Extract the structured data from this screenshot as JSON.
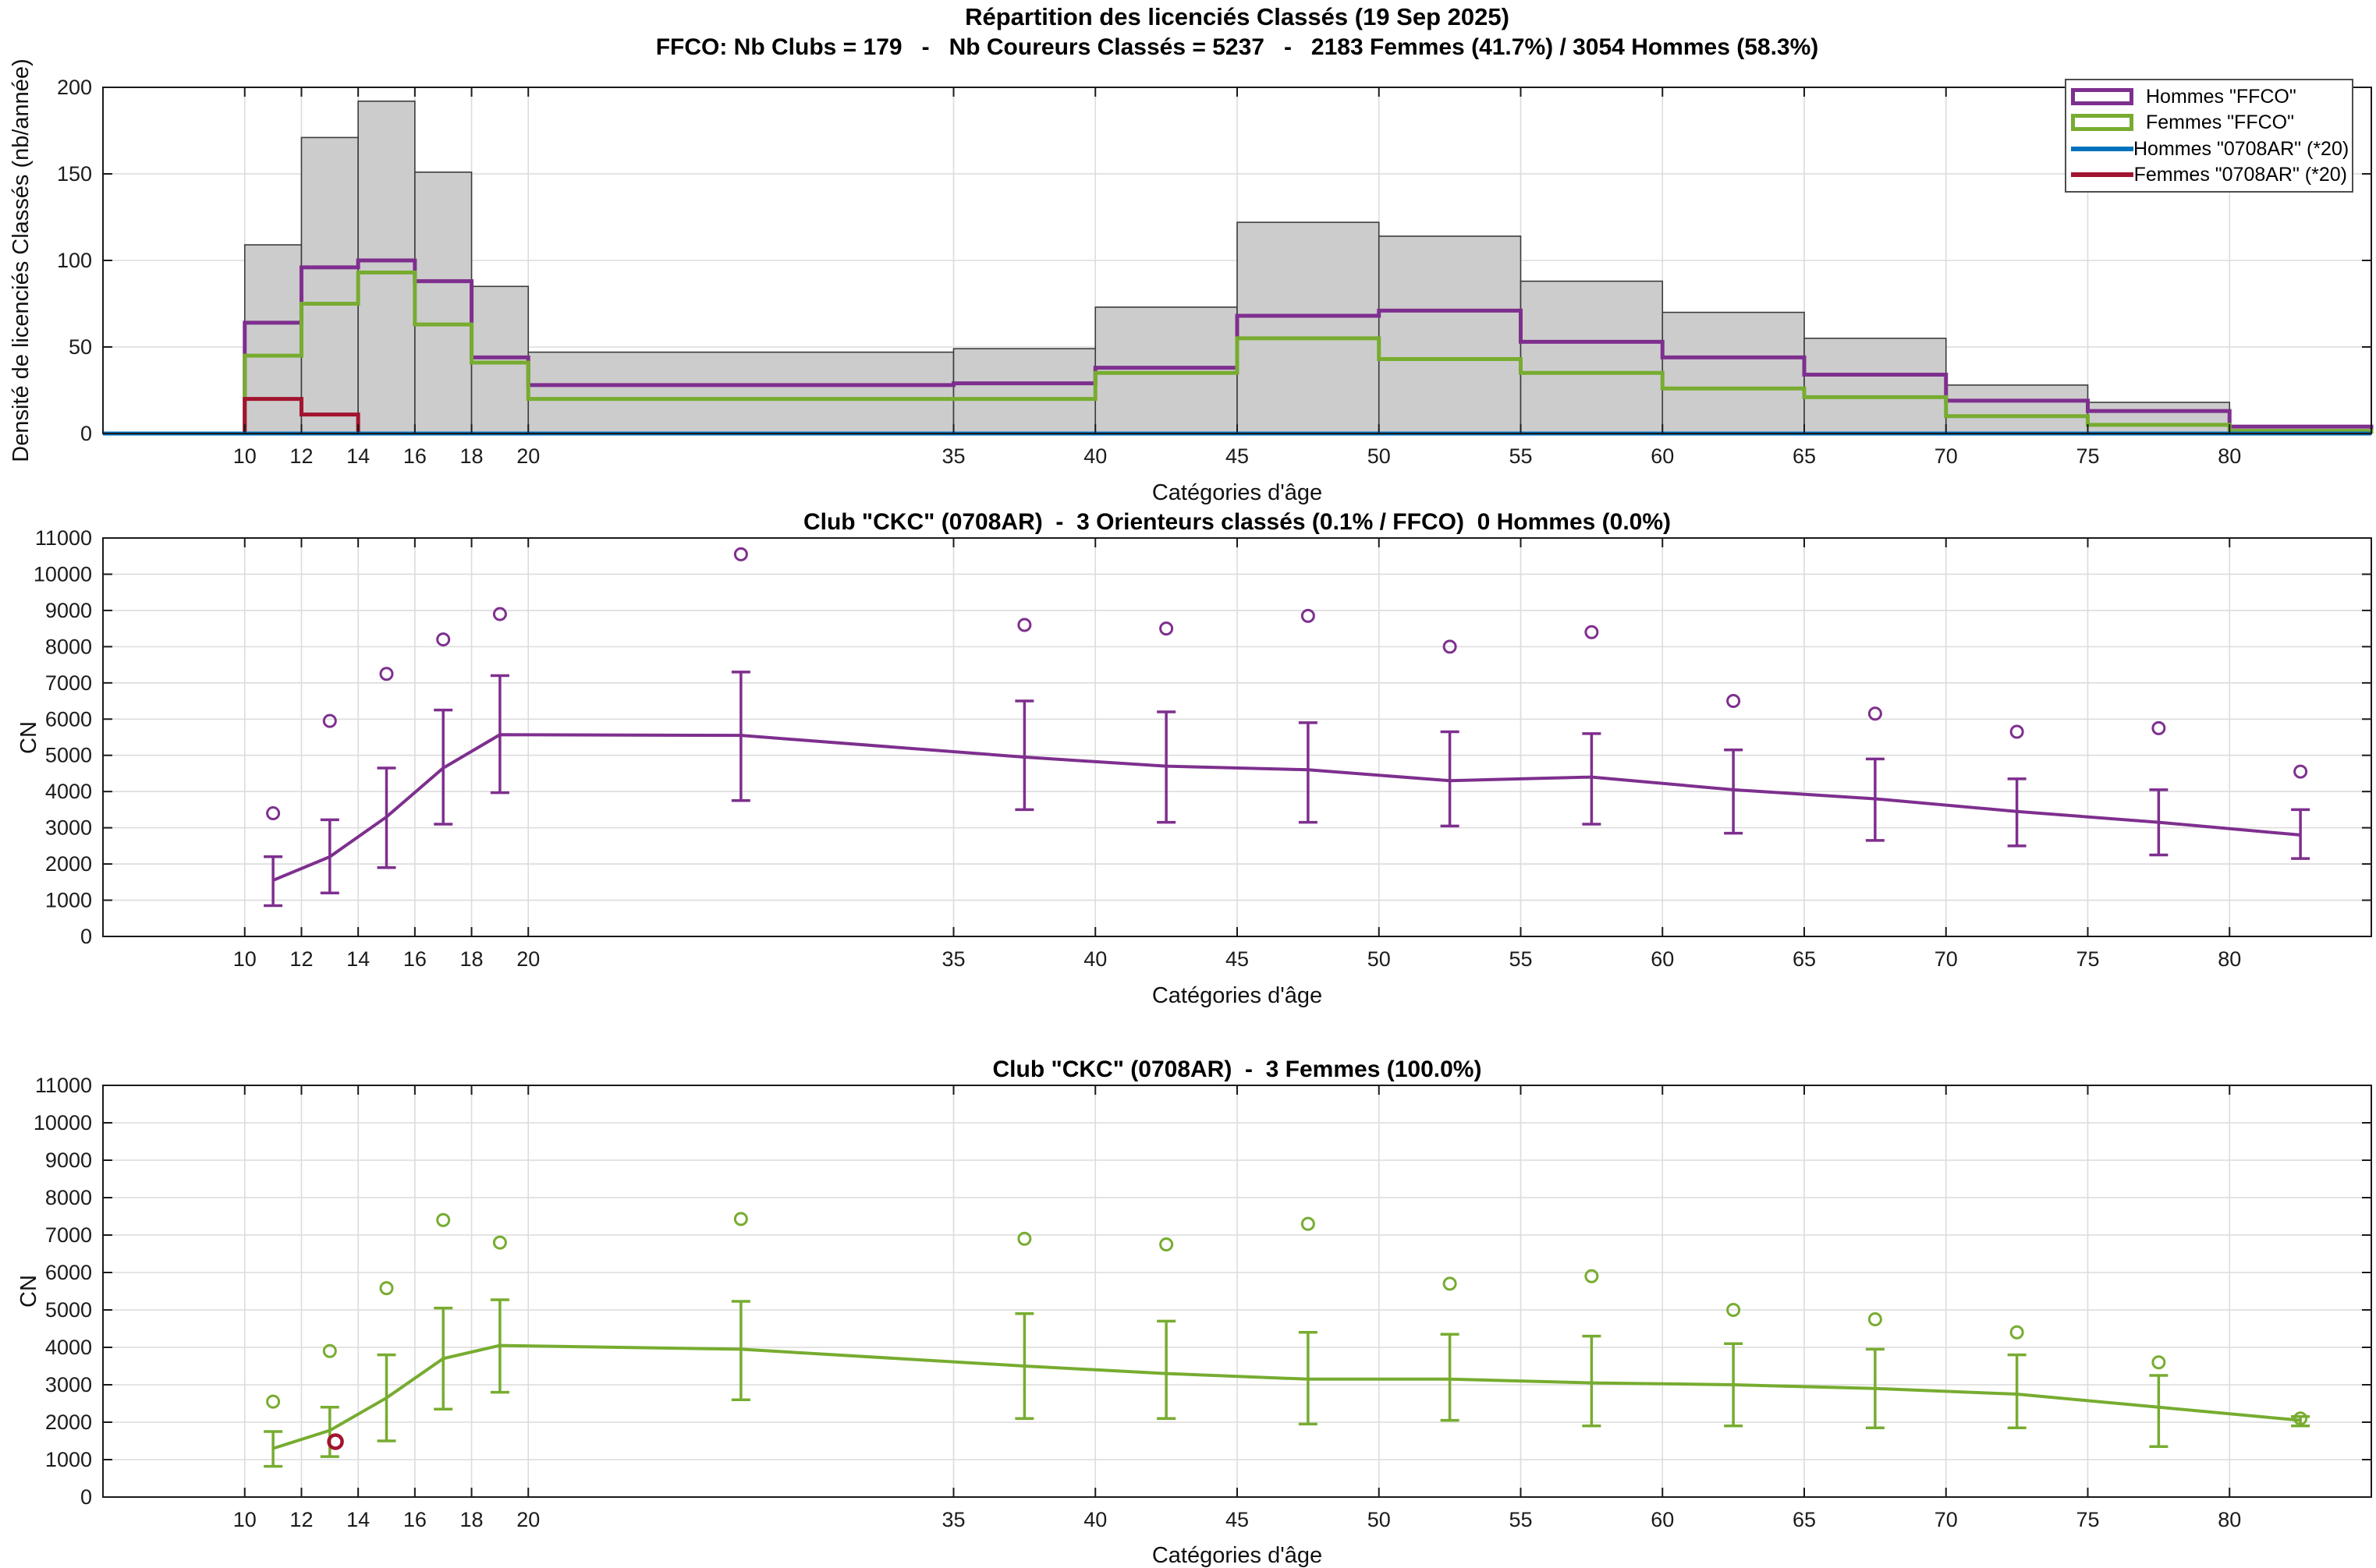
{
  "figure": {
    "title_line1": "Répartition des licenciés Classés (19 Sep 2025)",
    "title_line2": "FFCO: Nb Clubs = 179   -   Nb Coureurs Classés = 5237   -   2183 Femmes (41.7%) / 3054 Hommes (58.3%)"
  },
  "colors": {
    "hommes_ffco": "#7E2F8E",
    "femmes_ffco": "#77AC30",
    "hommes_club": "#0072BD",
    "femmes_club": "#A2142F",
    "bar_fill": "#CCCCCC",
    "bar_edge": "#3C3C3C",
    "grid": "#DCDCDC",
    "axis": "#1A1A1A",
    "tick_text": "#1C1C1C"
  },
  "legend": {
    "items": [
      {
        "label": "Hommes \"FFCO\"",
        "type": "box",
        "color": "#7E2F8E"
      },
      {
        "label": "Femmes \"FFCO\"",
        "type": "box",
        "color": "#77AC30"
      },
      {
        "label": "Hommes \"0708AR\" (*20)",
        "type": "line",
        "color": "#0072BD"
      },
      {
        "label": "Femmes \"0708AR\" (*20)",
        "type": "line",
        "color": "#A2142F"
      }
    ]
  },
  "chart_data": [
    {
      "id": "repartition-histogramme",
      "type": "bar",
      "title": "Répartition des licenciés Classés (19 Sep 2025)",
      "subtitle": "FFCO: Nb Clubs = 179 - Nb Coureurs Classés = 5237 - 2183 Femmes (41.7%) / 3054 Hommes (58.3%)",
      "xlabel": "Catégories d'âge",
      "ylabel": "Densité de licenciés Classés (nb/année)",
      "xlim": [
        5,
        85
      ],
      "ylim": [
        0,
        200
      ],
      "xticks": [
        10,
        12,
        14,
        16,
        18,
        20,
        35,
        40,
        45,
        50,
        55,
        60,
        65,
        70,
        75,
        80
      ],
      "yticks": [
        0,
        50,
        100,
        150,
        200
      ],
      "grid": true,
      "legend_position": "top-right",
      "bin_edges": [
        10,
        12,
        14,
        16,
        18,
        20,
        35,
        40,
        45,
        50,
        55,
        60,
        65,
        70,
        75,
        80,
        85
      ],
      "series": [
        {
          "name": "Total FFCO",
          "style": "bar",
          "color": "#CCCCCC",
          "values": [
            109,
            171,
            192,
            151,
            85,
            47,
            49,
            73,
            122,
            114,
            88,
            70,
            55,
            28,
            18,
            4.5
          ]
        },
        {
          "name": "Hommes \"FFCO\"",
          "style": "step",
          "color": "#7E2F8E",
          "values": [
            64,
            96,
            100,
            88,
            44,
            28,
            29,
            38,
            68,
            71,
            53,
            44,
            34,
            19,
            13,
            4
          ]
        },
        {
          "name": "Femmes \"FFCO\"",
          "style": "step",
          "color": "#77AC30",
          "values": [
            45,
            75,
            93,
            63,
            41,
            20,
            20,
            35,
            55,
            43,
            35,
            26,
            21,
            10,
            5,
            1.5
          ]
        },
        {
          "name": "Femmes \"0708AR\" (*20)",
          "style": "step",
          "color": "#A2142F",
          "values": [
            20,
            11,
            0,
            0,
            0,
            0,
            0,
            0,
            0,
            0,
            0,
            0,
            0,
            0,
            0,
            0
          ]
        },
        {
          "name": "Hommes \"0708AR\" (*20)",
          "style": "baseline",
          "color": "#0072BD",
          "values": [
            0,
            0,
            0,
            0,
            0,
            0,
            0,
            0,
            0,
            0,
            0,
            0,
            0,
            0,
            0,
            0
          ]
        }
      ]
    },
    {
      "id": "club-hommes-cn",
      "type": "line",
      "title": "Club \"CKC\" (0708AR)  -  3 Orienteurs classés (0.1% / FFCO)  0 Hommes (0.0%)",
      "xlabel": "Catégories d'âge",
      "ylabel": "CN",
      "xlim": [
        5,
        85
      ],
      "ylim": [
        0,
        11000
      ],
      "xticks": [
        10,
        12,
        14,
        16,
        18,
        20,
        35,
        40,
        45,
        50,
        55,
        60,
        65,
        70,
        75,
        80
      ],
      "yticks": [
        0,
        1000,
        2000,
        3000,
        4000,
        5000,
        6000,
        7000,
        8000,
        9000,
        10000,
        11000
      ],
      "grid": true,
      "color": "#7E2F8E",
      "x": [
        11,
        13,
        15,
        17,
        19,
        27.5,
        37.5,
        42.5,
        47.5,
        52.5,
        57.5,
        62.5,
        67.5,
        72.5,
        77.5,
        82.5
      ],
      "mean": [
        1550,
        2200,
        3300,
        4650,
        5570,
        5550,
        4950,
        4700,
        4600,
        4300,
        4400,
        4050,
        3800,
        3450,
        3150,
        2800
      ],
      "lo": [
        850,
        1200,
        1900,
        3100,
        3970,
        3750,
        3500,
        3150,
        3150,
        3050,
        3100,
        2850,
        2650,
        2500,
        2250,
        2150
      ],
      "hi": [
        2200,
        3220,
        4650,
        6250,
        7200,
        7300,
        6500,
        6200,
        5900,
        5650,
        5600,
        5150,
        4900,
        4350,
        4050,
        3500
      ],
      "outliers": [
        [
          11,
          3400
        ],
        [
          13,
          5950
        ],
        [
          15,
          7250
        ],
        [
          17,
          8200
        ],
        [
          19,
          8900
        ],
        [
          27.5,
          10550
        ],
        [
          37.5,
          8600
        ],
        [
          42.5,
          8500
        ],
        [
          47.5,
          8850
        ],
        [
          52.5,
          8000
        ],
        [
          57.5,
          8400
        ],
        [
          62.5,
          6500
        ],
        [
          67.5,
          6150
        ],
        [
          72.5,
          5650
        ],
        [
          77.5,
          5750
        ],
        [
          82.5,
          4550
        ]
      ]
    },
    {
      "id": "club-femmes-cn",
      "type": "line",
      "title": "Club \"CKC\" (0708AR)  -  3 Femmes (100.0%)",
      "xlabel": "Catégories d'âge",
      "ylabel": "CN",
      "xlim": [
        5,
        85
      ],
      "ylim": [
        0,
        11000
      ],
      "xticks": [
        10,
        12,
        14,
        16,
        18,
        20,
        35,
        40,
        45,
        50,
        55,
        60,
        65,
        70,
        75,
        80
      ],
      "yticks": [
        0,
        1000,
        2000,
        3000,
        4000,
        5000,
        6000,
        7000,
        8000,
        9000,
        10000,
        11000
      ],
      "grid": true,
      "color": "#77AC30",
      "x": [
        11,
        13,
        15,
        17,
        19,
        27.5,
        37.5,
        42.5,
        47.5,
        52.5,
        57.5,
        62.5,
        67.5,
        72.5,
        77.5,
        82.5
      ],
      "mean": [
        1300,
        1780,
        2650,
        3700,
        4050,
        3950,
        3500,
        3300,
        3150,
        3150,
        3050,
        3000,
        2900,
        2750,
        2400,
        2050
      ],
      "lo": [
        820,
        1080,
        1500,
        2350,
        2800,
        2600,
        2100,
        2100,
        1950,
        2050,
        1900,
        1900,
        1850,
        1850,
        1350,
        1900
      ],
      "hi": [
        1750,
        2400,
        3800,
        5050,
        5270,
        5230,
        4900,
        4700,
        4400,
        4350,
        4300,
        4100,
        3950,
        3800,
        3250,
        2150
      ],
      "outliers": [
        [
          11,
          2550
        ],
        [
          13,
          3900
        ],
        [
          15,
          5580
        ],
        [
          17,
          7400
        ],
        [
          19,
          6800
        ],
        [
          27.5,
          7430
        ],
        [
          37.5,
          6900
        ],
        [
          42.5,
          6750
        ],
        [
          47.5,
          7300
        ],
        [
          52.5,
          5700
        ],
        [
          57.5,
          5900
        ],
        [
          62.5,
          5000
        ],
        [
          67.5,
          4750
        ],
        [
          72.5,
          4400
        ],
        [
          77.5,
          3600
        ],
        [
          82.5,
          2100
        ]
      ],
      "club_points": [
        {
          "x": 13.2,
          "y": 1480,
          "color": "#A2142F"
        }
      ]
    }
  ]
}
